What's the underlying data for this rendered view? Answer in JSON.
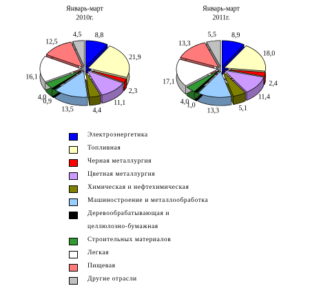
{
  "chart_data": [
    {
      "type": "pie",
      "title": "Январь-март",
      "subtitle": "2010г.",
      "categories": [
        "Электроэнергетика",
        "Топливная",
        "Черная металлургия",
        "Цветная металлургия",
        "Химическая и нефтехимическая",
        "Машиностроение и металлообработка",
        "Деревообрабатывающая и целлюлозно-бумажная",
        "Строительных материалов",
        "Легкая",
        "Пищевая",
        "Другие отрасли"
      ],
      "values": [
        8.8,
        21.9,
        2.3,
        11.1,
        4.4,
        13.5,
        0.9,
        4.0,
        16.1,
        12.5,
        4.5
      ],
      "value_labels": [
        "8,8",
        "21,9",
        "2,3",
        "11,1",
        "4,4",
        "13,5",
        "0,9",
        "4,0",
        "16,1",
        "12,5",
        "4,5"
      ],
      "colors": [
        "#0000ff",
        "#ffffc0",
        "#ff0000",
        "#cc99ff",
        "#808000",
        "#99ccff",
        "#000000",
        "#339933",
        "#ffffff",
        "#ff7a7a",
        "#c0c0c0"
      ]
    },
    {
      "type": "pie",
      "title": "Январь-март",
      "subtitle": "2011г.",
      "categories": [
        "Электроэнергетика",
        "Топливная",
        "Черная металлургия",
        "Цветная металлургия",
        "Химическая и нефтехимическая",
        "Машиностроение и металлообработка",
        "Деревообрабатывающая и целлюлозно-бумажная",
        "Строительных материалов",
        "Легкая",
        "Пищевая",
        "Другие отрасли"
      ],
      "values": [
        8.9,
        18.0,
        2.4,
        11.4,
        5.1,
        13.3,
        1.0,
        4.0,
        17.1,
        13.3,
        5.5
      ],
      "value_labels": [
        "8,9",
        "18,0",
        "2,4",
        "11,4",
        "5,1",
        "13,3",
        "1,0",
        "4,0",
        "17,1",
        "13,3",
        "5,5"
      ],
      "colors": [
        "#0000ff",
        "#ffffc0",
        "#ff0000",
        "#cc99ff",
        "#808000",
        "#99ccff",
        "#000000",
        "#339933",
        "#ffffff",
        "#ff7a7a",
        "#c0c0c0"
      ]
    }
  ]
}
